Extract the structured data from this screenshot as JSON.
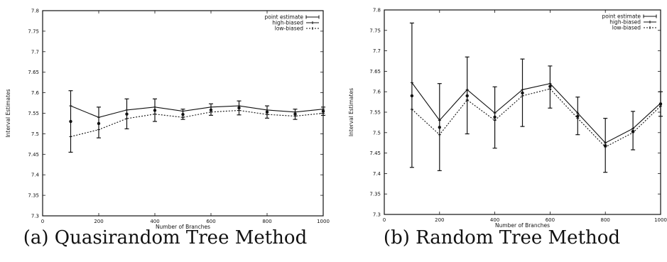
{
  "captions": [
    "(a) Quasirandom Tree Method",
    "(b) Random Tree Method"
  ],
  "chart_data": [
    {
      "type": "line",
      "title": "",
      "xlabel": "Number of Branches",
      "ylabel": "Interval Estimates",
      "xlim": [
        0,
        1000
      ],
      "ylim": [
        7.3,
        7.8
      ],
      "xticks": [
        "0",
        "200",
        "400",
        "600",
        "800",
        "1000"
      ],
      "yticks": [
        "7.3",
        "7.35",
        "7.4",
        "7.45",
        "7.5",
        "7.55",
        "7.6",
        "7.65",
        "7.7",
        "7.75",
        "7.8"
      ],
      "x": [
        100,
        200,
        300,
        400,
        500,
        600,
        700,
        800,
        900,
        1000
      ],
      "legend_position": "top-right",
      "series": [
        {
          "name": "point estimate",
          "style": "errorbar",
          "values": [
            7.53,
            7.525,
            7.548,
            7.557,
            7.547,
            7.558,
            7.563,
            7.553,
            7.548,
            7.555
          ],
          "lower": [
            7.455,
            7.49,
            7.512,
            7.53,
            7.535,
            7.545,
            7.546,
            7.538,
            7.535,
            7.545
          ],
          "upper": [
            7.605,
            7.565,
            7.585,
            7.585,
            7.56,
            7.573,
            7.58,
            7.568,
            7.56,
            7.565
          ]
        },
        {
          "name": "high-biased",
          "style": "solid",
          "values": [
            7.568,
            7.54,
            7.558,
            7.565,
            7.555,
            7.565,
            7.568,
            7.558,
            7.553,
            7.56
          ]
        },
        {
          "name": "low-biased",
          "style": "dotted",
          "values": [
            7.493,
            7.51,
            7.537,
            7.548,
            7.54,
            7.553,
            7.557,
            7.547,
            7.543,
            7.55
          ]
        }
      ]
    },
    {
      "type": "line",
      "title": "",
      "xlabel": "Number of Branches",
      "ylabel": "Interval Estimates",
      "xlim": [
        0,
        1000
      ],
      "ylim": [
        7.3,
        7.8
      ],
      "xticks": [
        "0",
        "200",
        "400",
        "600",
        "800",
        "1000"
      ],
      "yticks": [
        "7.3",
        "7.35",
        "7.4",
        "7.45",
        "7.5",
        "7.55",
        "7.6",
        "7.65",
        "7.7",
        "7.75",
        "7.8"
      ],
      "x": [
        100,
        200,
        300,
        400,
        500,
        600,
        700,
        800,
        900,
        1000
      ],
      "legend_position": "top-right",
      "series": [
        {
          "name": "point estimate",
          "style": "errorbar",
          "values": [
            7.59,
            7.513,
            7.59,
            7.538,
            7.597,
            7.613,
            7.54,
            7.468,
            7.503,
            7.57
          ],
          "lower": [
            7.415,
            7.407,
            7.497,
            7.462,
            7.515,
            7.56,
            7.495,
            7.403,
            7.458,
            7.54
          ],
          "upper": [
            7.768,
            7.62,
            7.685,
            7.612,
            7.68,
            7.663,
            7.587,
            7.535,
            7.552,
            7.6
          ]
        },
        {
          "name": "high-biased",
          "style": "solid",
          "values": [
            7.622,
            7.53,
            7.605,
            7.548,
            7.605,
            7.62,
            7.548,
            7.475,
            7.51,
            7.572
          ]
        },
        {
          "name": "low-biased",
          "style": "dotted",
          "values": [
            7.557,
            7.495,
            7.58,
            7.53,
            7.59,
            7.607,
            7.535,
            7.465,
            7.5,
            7.565
          ]
        }
      ]
    }
  ]
}
